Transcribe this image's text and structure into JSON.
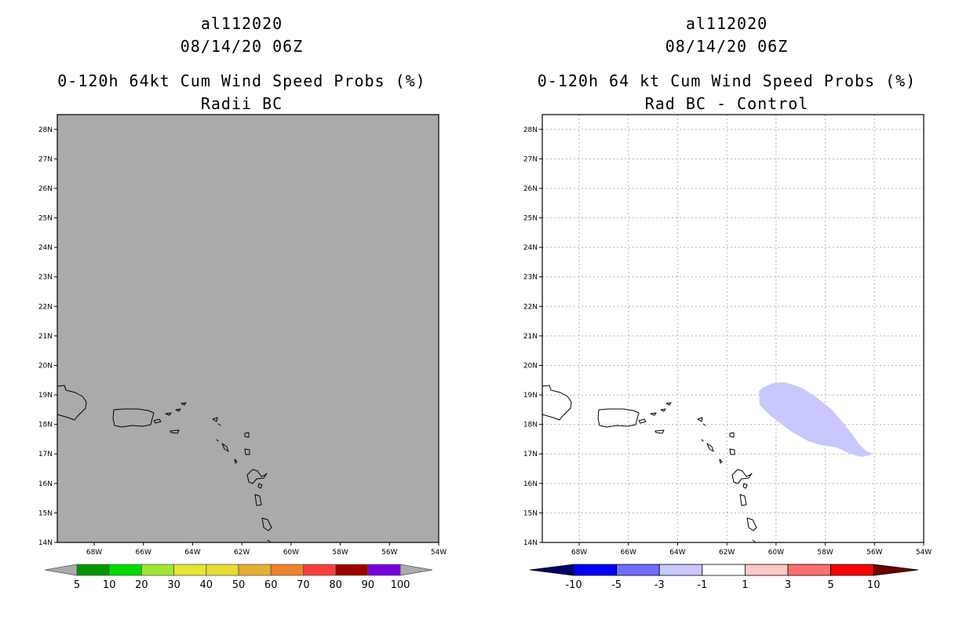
{
  "left_panel": {
    "storm_id": "al112020",
    "datetime": "08/14/20 06Z",
    "title": "0-120h 64kt Cum Wind Speed Probs (%)",
    "subtitle": "Radii BC",
    "background_color": "#aaaaaa",
    "colorbar": {
      "colors": [
        "#009600",
        "#00dc00",
        "#a0e632",
        "#e6e632",
        "#e6dc32",
        "#e6af2d",
        "#f08228",
        "#fa3c3c",
        "#a00000",
        "#7800dc"
      ],
      "labels": [
        "5",
        "10",
        "20",
        "30",
        "40",
        "50",
        "60",
        "70",
        "80",
        "90",
        "100"
      ]
    }
  },
  "right_panel": {
    "storm_id": "al112020",
    "datetime": "08/14/20 06Z",
    "title": "0-120h 64 kt Cum Wind Speed Probs (%)",
    "subtitle": "Rad BC - Control",
    "shade_color": "#c8c8ff",
    "colorbar": {
      "colors": [
        "#0000ff",
        "#6e6eff",
        "#c8c8ff",
        "#ffffff",
        "#ffc8c8",
        "#ff6e6e",
        "#ff0000"
      ],
      "labels": [
        "-10",
        "-5",
        "-3",
        "-1",
        "1",
        "3",
        "5",
        "10"
      ],
      "low_end_color": "#00006e",
      "high_end_color": "#6e0000"
    }
  },
  "axes": {
    "lon_range": [
      -69.5,
      -54
    ],
    "lat_range": [
      14,
      28.5
    ],
    "lon_tick_labels": [
      "68W",
      "66W",
      "64W",
      "62W",
      "60W",
      "58W",
      "56W",
      "54W"
    ],
    "lat_tick_labels": [
      "14N",
      "15N",
      "16N",
      "17N",
      "18N",
      "19N",
      "20N",
      "21N",
      "22N",
      "23N",
      "24N",
      "25N",
      "26N",
      "27N",
      "28N"
    ]
  }
}
